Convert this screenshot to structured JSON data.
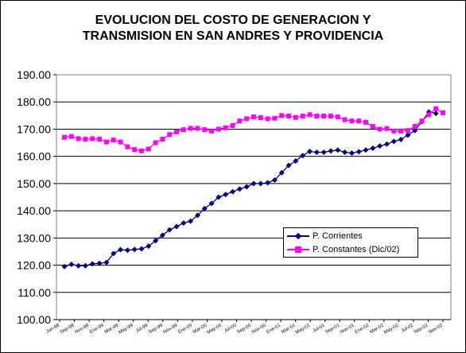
{
  "chart_data": {
    "type": "line",
    "title": "EVOLUCION DEL COSTO DE GENERACION Y\nTRANSMISION EN SAN ANDRES Y PROVIDENCIA",
    "title_lines": [
      "EVOLUCION DEL COSTO DE GENERACION Y",
      "TRANSMISION EN SAN ANDRES Y PROVIDENCIA"
    ],
    "xlabel": "",
    "ylabel": "",
    "ylim": [
      100,
      190
    ],
    "y_ticks": [
      "100.00",
      "110.00",
      "120.00",
      "130.00",
      "140.00",
      "150.00",
      "160.00",
      "170.00",
      "180.00",
      "190.00"
    ],
    "x_tick_labels": [
      "Jun-98",
      "Sep-98",
      "Nov-98",
      "Ene-99",
      "Mar-99",
      "May-99",
      "Jul-99",
      "Sep-99",
      "Nov-99",
      "Ene-00",
      "Mar-00",
      "May-00",
      "Jul-00",
      "Sep-00",
      "Nov-00",
      "Ene-01",
      "Mar-01",
      "May-01",
      "Jul-01",
      "Sep-01",
      "Nov-01",
      "Ene-02",
      "Mar-02",
      "May-02",
      "Jul-02",
      "Sep-02",
      "Nov-02"
    ],
    "grid": true,
    "legend_position": "lower-right",
    "series": [
      {
        "name": "P. Corrientes",
        "color": "#000080",
        "marker": "diamond",
        "values": [
          119.5,
          120.3,
          119.8,
          119.8,
          120.5,
          120.7,
          121.0,
          124.3,
          125.7,
          125.5,
          125.8,
          126.0,
          127.0,
          129.0,
          131.0,
          133.0,
          134.2,
          135.5,
          136.2,
          138.3,
          140.8,
          142.7,
          145.0,
          146.0,
          147.0,
          148.0,
          148.8,
          150.0,
          150.0,
          150.3,
          151.3,
          154.0,
          156.7,
          158.3,
          160.3,
          161.8,
          161.5,
          161.5,
          162.0,
          162.3,
          161.5,
          161.2,
          161.7,
          162.3,
          163.0,
          163.8,
          164.5,
          165.5,
          166.2,
          167.8,
          169.5,
          172.8,
          176.3,
          175.8
        ]
      },
      {
        "name": "P. Constantes (Dic/02)",
        "color": "#ff00ff",
        "marker": "square",
        "values": [
          167.0,
          167.3,
          166.5,
          166.3,
          166.5,
          166.3,
          165.3,
          166.0,
          165.3,
          163.5,
          162.5,
          162.0,
          162.7,
          165.0,
          166.3,
          168.0,
          169.0,
          169.8,
          170.3,
          170.3,
          169.8,
          169.3,
          170.0,
          170.5,
          171.3,
          173.0,
          173.8,
          174.5,
          174.2,
          173.8,
          174.0,
          175.0,
          174.8,
          174.3,
          174.8,
          175.3,
          174.8,
          174.8,
          174.8,
          174.5,
          173.5,
          173.0,
          173.0,
          172.5,
          171.0,
          170.0,
          170.2,
          169.3,
          169.3,
          169.5,
          171.0,
          173.0,
          175.3,
          177.5,
          176.0
        ]
      }
    ]
  }
}
